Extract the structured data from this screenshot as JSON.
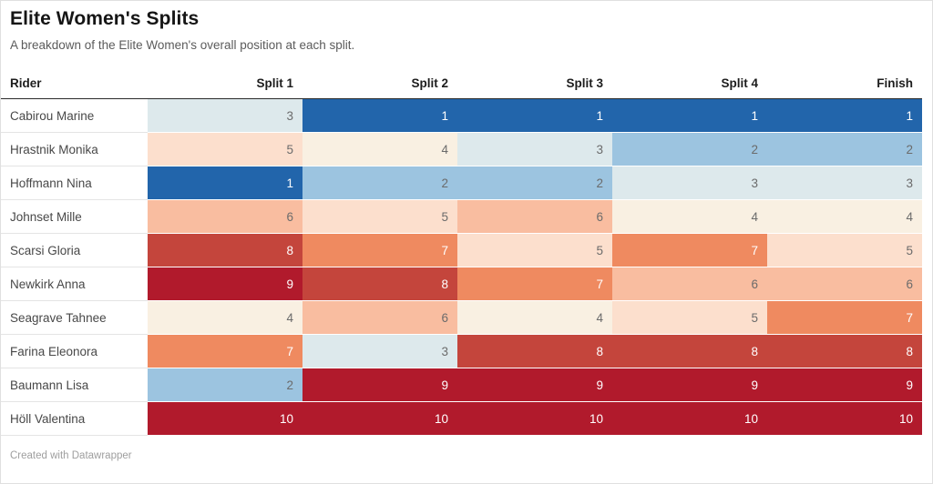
{
  "page": {
    "footer": "Created with Datawrapper"
  },
  "table": {
    "rider_label": "Rider"
  },
  "chart_data": {
    "type": "heatmap",
    "title": "Elite Women's Splits",
    "subtitle": "A breakdown of the Elite Women's overall position at each split.",
    "x": [
      "Split 1",
      "Split 2",
      "Split 3",
      "Split 4",
      "Finish"
    ],
    "series": [
      {
        "name": "Cabirou Marine",
        "values": [
          3,
          1,
          1,
          1,
          1
        ]
      },
      {
        "name": "Hrastnik Monika",
        "values": [
          5,
          4,
          3,
          2,
          2
        ]
      },
      {
        "name": "Hoffmann Nina",
        "values": [
          1,
          2,
          2,
          3,
          3
        ]
      },
      {
        "name": "Johnset Mille",
        "values": [
          6,
          5,
          6,
          4,
          4
        ]
      },
      {
        "name": "Scarsi Gloria",
        "values": [
          8,
          7,
          5,
          7,
          5
        ]
      },
      {
        "name": "Newkirk Anna",
        "values": [
          9,
          8,
          7,
          6,
          6
        ]
      },
      {
        "name": "Seagrave Tahnee",
        "values": [
          4,
          6,
          4,
          5,
          7
        ]
      },
      {
        "name": "Farina Eleonora",
        "values": [
          7,
          3,
          8,
          8,
          8
        ]
      },
      {
        "name": "Baumann Lisa",
        "values": [
          2,
          9,
          9,
          9,
          9
        ]
      },
      {
        "name": "Höll Valentina",
        "values": [
          10,
          10,
          10,
          10,
          10
        ]
      }
    ],
    "value_range": [
      1,
      10
    ],
    "value_meaning": "overall position (1 = leader)",
    "legend_position": "none",
    "color_mapping": "diverging blue-to-red; rank 1 dark blue, rank 10 dark red"
  },
  "colors": {
    "scale": {
      "1": {
        "bg": "#2265ab",
        "text": "#ffffff"
      },
      "2": {
        "bg": "#9cc4e0",
        "text": "#6b6b6b"
      },
      "3": {
        "bg": "#dde9ec",
        "text": "#6b6b6b"
      },
      "4": {
        "bg": "#f9f0e2",
        "text": "#6b6b6b"
      },
      "5": {
        "bg": "#fcdfcd",
        "text": "#6b6b6b"
      },
      "6": {
        "bg": "#f9bda0",
        "text": "#6b6b6b"
      },
      "7": {
        "bg": "#ef8a60",
        "text": "#ffffff"
      },
      "8": {
        "bg": "#c4453c",
        "text": "#ffffff"
      },
      "9": {
        "bg": "#b11a2c",
        "text": "#ffffff"
      },
      "10": {
        "bg": "#b11a2c",
        "text": "#ffffff"
      }
    },
    "header_rule": "#2b2b2b",
    "row_rule": "#e4e4e4"
  }
}
